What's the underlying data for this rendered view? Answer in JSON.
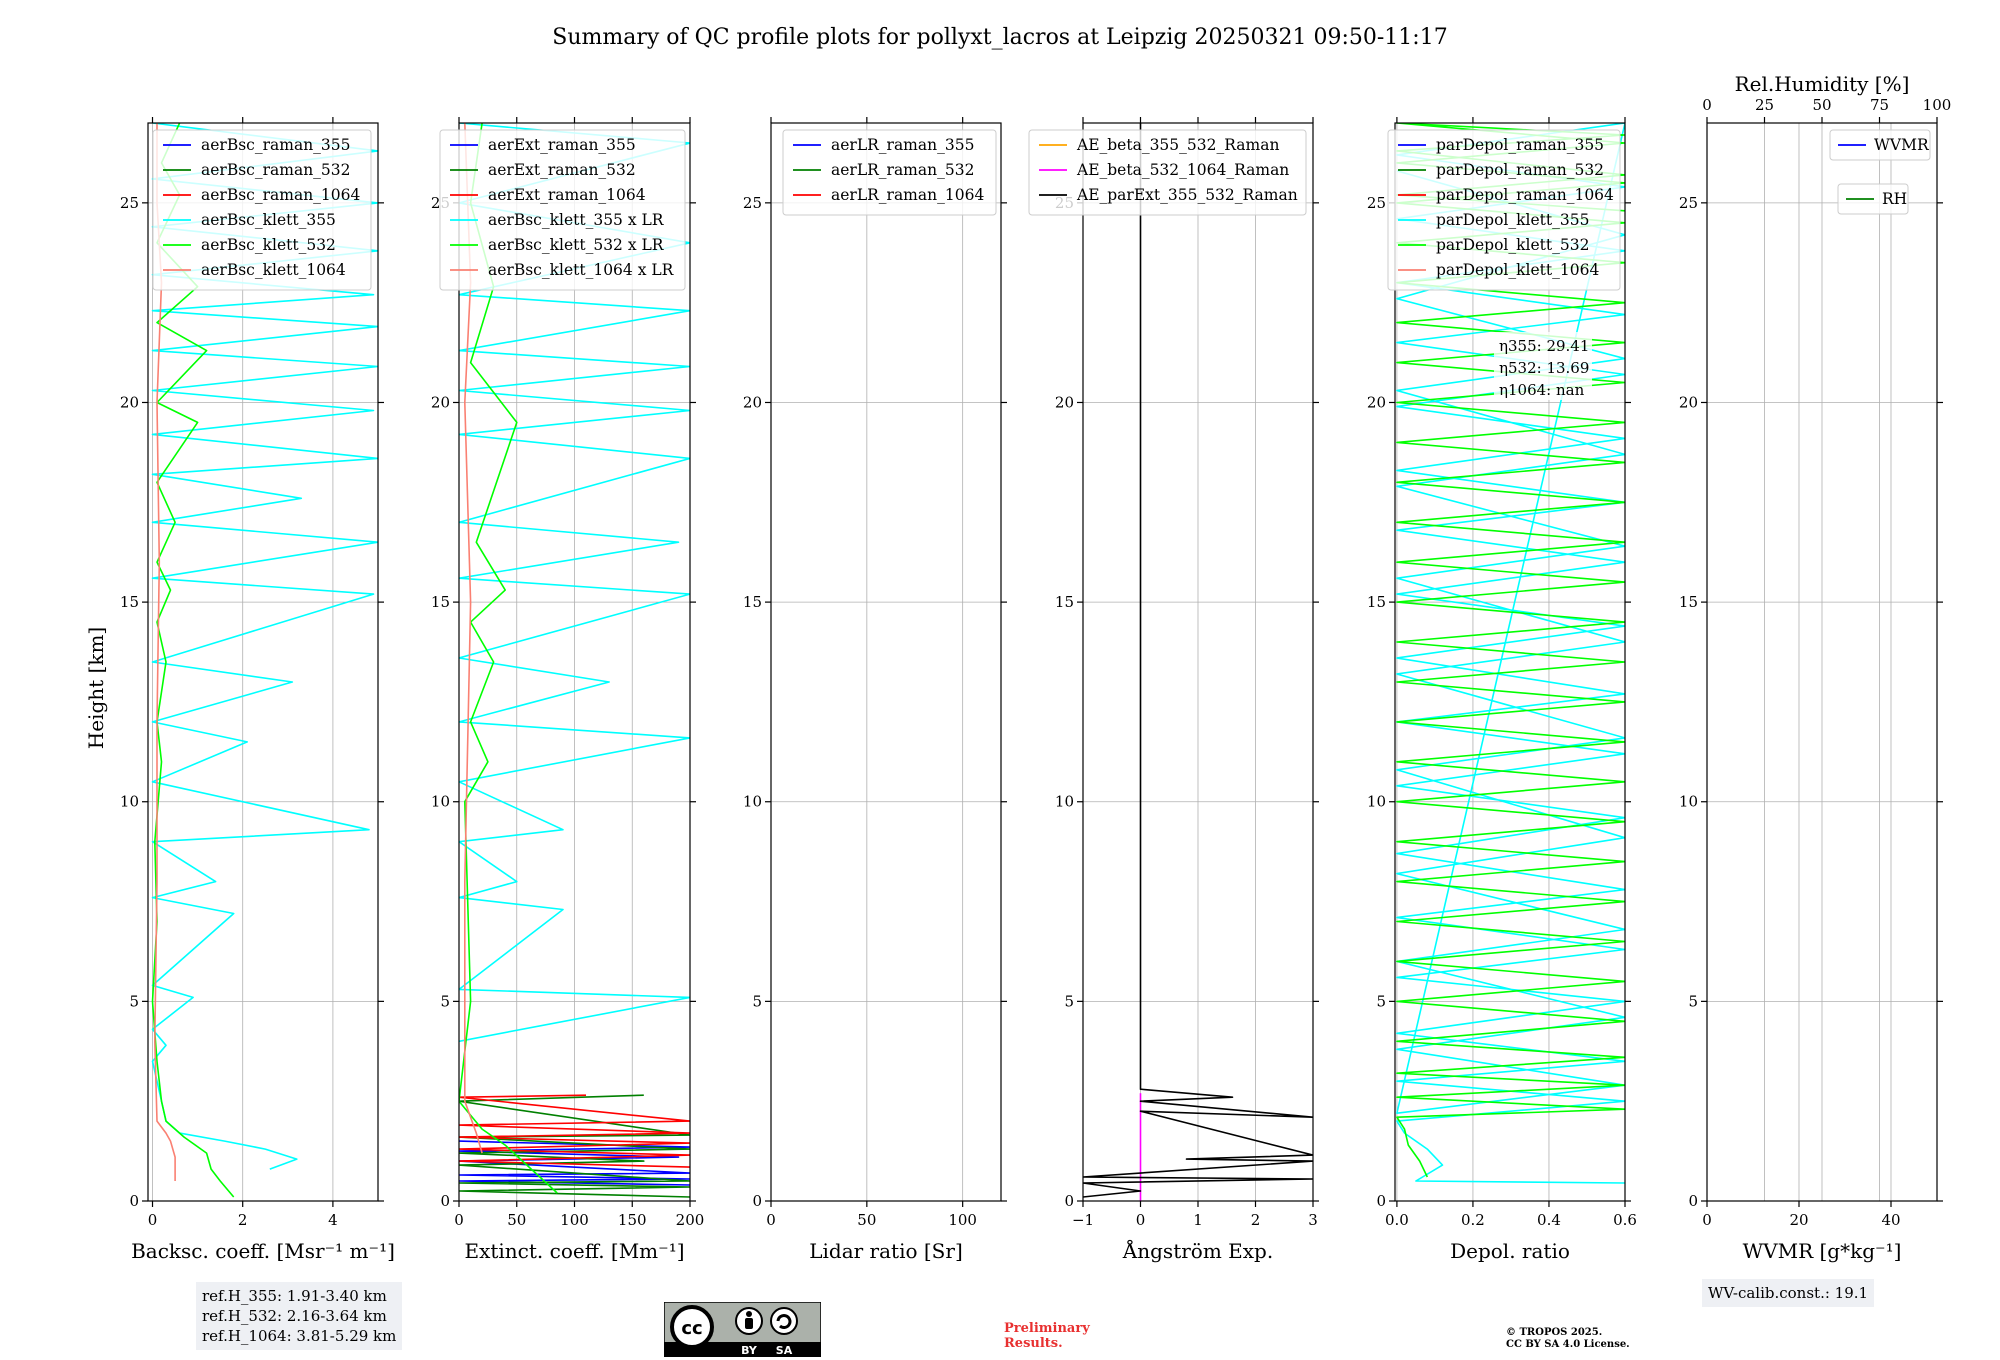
{
  "figure_title": "Summary of QC profile plots for pollyxt_lacros at Leipzig 20250321 09:50-11:17",
  "height_label": "Height [km]",
  "ref_heights": [
    "ref.H_355: 1.91-3.40 km",
    "ref.H_532: 2.16-3.64 km",
    "ref.H_1064: 3.81-5.29 km"
  ],
  "wv_calib": "WV-calib.const.: 19.1",
  "preliminary": [
    "Preliminary",
    "Results."
  ],
  "copyright": [
    "© TROPOS 2025.",
    "CC BY SA 4.0 License."
  ],
  "license_badge": {
    "cc": "cc",
    "by": "BY",
    "sa": "SA"
  },
  "colors": {
    "blue": "#0000ff",
    "green": "#008000",
    "red": "#ff0000",
    "cyan": "#00ffff",
    "lime": "#00ff00",
    "salmon": "#fa8072",
    "orange": "#ffa500",
    "magenta": "#ff00ff",
    "black": "#000000"
  },
  "chart_data": [
    {
      "type": "line",
      "id": "backscatter",
      "xlabel": "Backsc. coeff. [Msr⁻¹ m⁻¹]",
      "ylabel": "Height [km]",
      "xlim": [
        -0.1,
        5.0
      ],
      "ylim": [
        0,
        27
      ],
      "xticks": [
        0,
        2,
        4
      ],
      "yticks": [
        0,
        5,
        10,
        15,
        20,
        25
      ],
      "grid": true,
      "legend_placement": "upper right",
      "series": [
        {
          "name": "aerBsc_raman_355",
          "color": "blue",
          "values": []
        },
        {
          "name": "aerBsc_raman_532",
          "color": "green",
          "values": []
        },
        {
          "name": "aerBsc_raman_1064",
          "color": "red",
          "values": []
        },
        {
          "name": "aerBsc_klett_355",
          "color": "cyan",
          "x": [
            2.6,
            3.2,
            2.5,
            1.6,
            0.6,
            0.3,
            0.2,
            0.1,
            0.0,
            0.3,
            0.0,
            0.9,
            0.0,
            1.8,
            0.0,
            1.4,
            0.0,
            4.8,
            0.0,
            2.1,
            0.0,
            3.1,
            0.0,
            4.9,
            0.0,
            5.0,
            0.0,
            3.3,
            0.0,
            5.0,
            0.0,
            4.9,
            0.0,
            5.0,
            0.0,
            5.0,
            0.0,
            4.9,
            0.0,
            5.0,
            0.0,
            5.0,
            0.0,
            5.0,
            0.0
          ],
          "y": [
            0.8,
            1.05,
            1.3,
            1.5,
            1.7,
            2.0,
            2.5,
            3.0,
            3.5,
            3.9,
            4.3,
            5.1,
            5.4,
            7.2,
            7.6,
            8.0,
            9.0,
            9.3,
            10.5,
            11.5,
            12.0,
            13.0,
            13.5,
            15.2,
            15.6,
            16.5,
            17.0,
            17.6,
            18.2,
            18.6,
            19.2,
            19.8,
            20.3,
            20.9,
            21.3,
            21.9,
            22.3,
            22.7,
            23.2,
            23.8,
            24.4,
            25.0,
            25.6,
            26.3,
            27.0
          ]
        },
        {
          "name": "aerBsc_klett_532",
          "color": "lime",
          "x": [
            1.8,
            1.5,
            1.3,
            1.2,
            0.7,
            0.3,
            0.2,
            0.1,
            0.0,
            0.1,
            0.05,
            0.2,
            0.1,
            0.3,
            0.1,
            0.4,
            0.1,
            0.5,
            0.1,
            1.0,
            0.1,
            1.2,
            0.1,
            1.0,
            0.1,
            0.6,
            0.2,
            0.6
          ],
          "y": [
            0.1,
            0.5,
            0.8,
            1.2,
            1.6,
            2.0,
            2.5,
            3.5,
            5.0,
            7.0,
            9.0,
            11.0,
            12.0,
            13.5,
            14.5,
            15.3,
            16.0,
            17.0,
            18.0,
            19.5,
            20.0,
            21.3,
            22.0,
            22.9,
            24.0,
            25.2,
            26.0,
            27.0
          ]
        },
        {
          "name": "aerBsc_klett_1064",
          "color": "salmon",
          "x": [
            0.5,
            0.5,
            0.4,
            0.3,
            0.1,
            0.05,
            0.1,
            0.1,
            0.15,
            0.1,
            0.2,
            0.1,
            0.1
          ],
          "y": [
            0.5,
            1.1,
            1.5,
            1.7,
            2.0,
            4.0,
            8.0,
            12.0,
            16.0,
            20.0,
            23.0,
            25.0,
            27.0
          ]
        }
      ]
    },
    {
      "type": "line",
      "id": "extinction",
      "xlabel": "Extinct. coeff. [Mm⁻¹]",
      "ylabel": "Height [km]",
      "xlim": [
        0,
        200
      ],
      "ylim": [
        0,
        27
      ],
      "xticks": [
        0,
        50,
        100,
        150,
        200
      ],
      "yticks": [
        0,
        5,
        10,
        15,
        20,
        25
      ],
      "grid": true,
      "legend_placement": "upper right",
      "series": [
        {
          "name": "aerExt_raman_355",
          "color": "blue",
          "x": [
            200,
            0,
            200,
            0,
            200,
            0,
            190,
            0,
            200,
            0
          ],
          "y": [
            0.4,
            0.5,
            0.55,
            0.65,
            0.7,
            1.0,
            1.1,
            1.25,
            1.35,
            1.5
          ]
        },
        {
          "name": "aerExt_raman_532",
          "color": "green",
          "x": [
            200,
            0,
            200,
            0,
            200,
            0,
            160,
            0,
            200,
            0,
            200,
            0,
            160
          ],
          "y": [
            0.1,
            0.25,
            0.35,
            0.45,
            0.5,
            0.9,
            1.0,
            1.2,
            1.3,
            1.6,
            1.65,
            2.5,
            2.65
          ]
        },
        {
          "name": "aerExt_raman_1064",
          "color": "red",
          "x": [
            200,
            0,
            200,
            0,
            200,
            0,
            200,
            0,
            200,
            0,
            110
          ],
          "y": [
            0.85,
            1.0,
            1.15,
            1.3,
            1.45,
            1.6,
            1.7,
            1.9,
            2.0,
            2.6,
            2.65
          ]
        },
        {
          "name": "aerBsc_klett_355 x LR",
          "color": "cyan",
          "x": [
            0,
            200,
            0,
            90,
            0,
            50,
            0,
            90,
            0,
            200,
            0,
            130,
            0,
            200,
            0,
            190,
            0,
            200,
            0,
            200,
            0,
            200,
            0,
            200,
            0,
            200,
            0,
            200,
            0
          ],
          "y": [
            4.0,
            5.1,
            5.3,
            7.3,
            7.6,
            8.0,
            9.0,
            9.3,
            10.5,
            11.6,
            12.0,
            13.0,
            13.6,
            15.2,
            15.6,
            16.5,
            17.0,
            18.6,
            19.2,
            19.8,
            20.3,
            20.9,
            21.3,
            22.3,
            22.7,
            24.0,
            25.0,
            26.5,
            27.0
          ]
        },
        {
          "name": "aerBsc_klett_532 x LR",
          "color": "lime",
          "x": [
            85,
            70,
            55,
            40,
            20,
            0,
            10,
            5,
            25,
            10,
            30,
            10,
            40,
            15,
            50,
            10,
            30,
            10,
            20
          ],
          "y": [
            0.2,
            0.6,
            1.0,
            1.4,
            1.8,
            2.5,
            5.0,
            10.0,
            11.0,
            12.0,
            13.5,
            14.5,
            15.3,
            16.5,
            19.5,
            21.0,
            22.9,
            25.0,
            27.0
          ]
        },
        {
          "name": "aerBsc_klett_1064 x LR",
          "color": "salmon",
          "x": [
            20,
            15,
            5,
            5,
            10,
            5,
            10,
            5
          ],
          "y": [
            1.2,
            1.7,
            2.5,
            8.0,
            15.0,
            20.0,
            23.0,
            27.0
          ]
        }
      ]
    },
    {
      "type": "line",
      "id": "lidar-ratio",
      "xlabel": "Lidar ratio [Sr]",
      "ylabel": "Height [km]",
      "xlim": [
        0,
        120
      ],
      "ylim": [
        0,
        27
      ],
      "xticks": [
        0,
        50,
        100
      ],
      "yticks": [
        0,
        5,
        10,
        15,
        20,
        25
      ],
      "grid": true,
      "legend_placement": "upper right",
      "series": [
        {
          "name": "aerLR_raman_355",
          "color": "blue",
          "values": []
        },
        {
          "name": "aerLR_raman_532",
          "color": "green",
          "values": []
        },
        {
          "name": "aerLR_raman_1064",
          "color": "red",
          "values": []
        }
      ]
    },
    {
      "type": "line",
      "id": "angstrom",
      "xlabel": "Ångström Exp.",
      "ylabel": "Height [km]",
      "xlim": [
        -1,
        3
      ],
      "ylim": [
        0,
        27
      ],
      "xticks": [
        -1,
        0,
        1,
        2,
        3
      ],
      "xticklabels": [
        "−1",
        "0",
        "1",
        "2",
        "3"
      ],
      "yticks": [
        0,
        5,
        10,
        15,
        20,
        25
      ],
      "grid": true,
      "legend_placement": "upper left",
      "series": [
        {
          "name": "AE_beta_355_532_Raman",
          "color": "orange",
          "values": []
        },
        {
          "name": "AE_beta_532_1064_Raman",
          "color": "magenta",
          "x": [
            0,
            0
          ],
          "y": [
            0.0,
            2.7
          ]
        },
        {
          "name": "AE_parExt_355_532_Raman",
          "color": "black",
          "x": [
            -1.0,
            0.0,
            -1.0,
            3.0,
            -1.0,
            3.0,
            0.8,
            3.0,
            0.0,
            3.0,
            0.0,
            1.6,
            0.0,
            0.0
          ],
          "y": [
            0.1,
            0.25,
            0.45,
            0.55,
            0.6,
            1.0,
            1.05,
            1.15,
            2.25,
            2.1,
            2.5,
            2.6,
            2.8,
            27.0
          ]
        }
      ]
    },
    {
      "type": "line",
      "id": "depolarization",
      "xlabel": "Depol. ratio",
      "ylabel": "Height [km]",
      "xlim": [
        -0.005,
        0.6
      ],
      "ylim": [
        0,
        27
      ],
      "xticks": [
        0.0,
        0.2,
        0.4,
        0.6
      ],
      "xticklabels": [
        "0.0",
        "0.2",
        "0.4",
        "0.6"
      ],
      "yticks": [
        0,
        5,
        10,
        15,
        20,
        25
      ],
      "grid": true,
      "legend_placement": "upper right",
      "annotations": [
        "η355: 29.41",
        "η532: 13.69",
        "η1064: nan"
      ],
      "series": [
        {
          "name": "parDepol_raman_355",
          "color": "blue",
          "values": []
        },
        {
          "name": "parDepol_raman_532",
          "color": "green",
          "values": []
        },
        {
          "name": "parDepol_raman_1064",
          "color": "red",
          "values": []
        },
        {
          "name": "parDepol_klett_355",
          "color": "cyan",
          "x": [
            0.6,
            0.05,
            0.12,
            0.08,
            0.02,
            0.0,
            0.6,
            0.0,
            0.6,
            0.0,
            0.6,
            0.0,
            0.6,
            0.0,
            0.6,
            0.0,
            0.6,
            0.0,
            0.6,
            0.0,
            0.6,
            0.0,
            0.6,
            0.0,
            0.6,
            0.0,
            0.6,
            0.0,
            0.6,
            0.0,
            0.6,
            0.0,
            0.6,
            0.0,
            0.6,
            0.0,
            0.6,
            0.0,
            0.6,
            0.0,
            0.6,
            0.0,
            0.6,
            0.0,
            0.6,
            0.0,
            0.6,
            0.0,
            0.6,
            0.0,
            0.6,
            0.0,
            0.6,
            0.0,
            0.6,
            0.0,
            0.6,
            0.0,
            0.6,
            0.0
          ],
          "y": [
            0.45,
            0.5,
            0.9,
            1.3,
            1.7,
            2.0,
            2.5,
            3.0,
            3.5,
            4.2,
            5.0,
            5.6,
            6.3,
            7.1,
            7.8,
            8.7,
            9.6,
            10.4,
            11.2,
            12.0,
            12.7,
            13.6,
            14.4,
            15.2,
            16.0,
            16.8,
            17.5,
            18.3,
            19.1,
            19.9,
            20.7,
            21.5,
            22.2,
            23.0,
            23.8,
            24.6,
            25.4,
            26.2,
            27.0,
            2.2,
            2.9,
            3.8,
            4.6,
            6.0,
            6.8,
            8.2,
            9.1,
            10.8,
            11.6,
            13.2,
            14.0,
            15.6,
            16.4,
            17.9,
            18.7,
            20.3,
            21.1,
            22.6,
            24.2,
            25.8
          ]
        },
        {
          "name": "parDepol_klett_532",
          "color": "lime",
          "x": [
            0.08,
            0.06,
            0.03,
            0.02,
            0.0,
            0.6,
            0.0,
            0.6,
            0.0,
            0.6,
            0.0,
            0.6,
            0.0,
            0.6,
            0.0,
            0.6,
            0.0,
            0.6,
            0.0,
            0.6,
            0.0,
            0.6,
            0.0,
            0.6,
            0.0,
            0.6,
            0.0,
            0.6,
            0.0,
            0.6,
            0.0,
            0.6,
            0.0,
            0.6,
            0.0,
            0.6,
            0.0,
            0.6,
            0.0,
            0.6,
            0.0,
            0.6,
            0.0,
            0.6,
            0.0,
            0.6,
            0.0,
            0.6,
            0.0,
            0.6,
            0.0,
            0.6,
            0.0,
            0.6,
            0.0,
            0.6,
            0.0,
            0.6,
            0.0,
            0.6,
            0.0,
            0.6
          ],
          "y": [
            0.6,
            1.0,
            1.4,
            1.8,
            2.1,
            2.3,
            2.6,
            2.9,
            3.2,
            3.6,
            4.0,
            4.5,
            5.0,
            5.5,
            6.0,
            6.5,
            7.0,
            7.5,
            8.0,
            8.5,
            9.0,
            9.5,
            10.0,
            10.5,
            11.0,
            11.5,
            12.0,
            12.5,
            13.0,
            13.5,
            14.0,
            14.5,
            15.0,
            15.5,
            16.0,
            16.5,
            17.0,
            17.5,
            18.0,
            18.5,
            19.0,
            19.5,
            20.0,
            20.5,
            21.0,
            21.5,
            22.0,
            22.5,
            23.0,
            23.5,
            24.0,
            24.5,
            25.0,
            25.5,
            26.0,
            26.5,
            27.0,
            26.7,
            26.3,
            25.7,
            25.2,
            24.8
          ]
        },
        {
          "name": "parDepol_klett_1064",
          "color": "salmon",
          "values": []
        }
      ]
    },
    {
      "type": "line",
      "id": "water-vapor",
      "xlabel": "WVMR [g*kg⁻¹]",
      "x2label": "Rel.Humidity [%]",
      "ylabel": "Height [km]",
      "xlim": [
        0,
        50
      ],
      "x2lim": [
        0,
        100
      ],
      "ylim": [
        0,
        27
      ],
      "xticks": [
        0,
        20,
        40
      ],
      "x2ticks": [
        0,
        25,
        50,
        75,
        100
      ],
      "yticks": [
        0,
        5,
        10,
        15,
        20,
        25
      ],
      "grid": true,
      "legend_placement": "upper right",
      "series": [
        {
          "name": "WVMR",
          "color": "blue",
          "values": []
        },
        {
          "name": "RH",
          "color": "green",
          "values": []
        }
      ]
    }
  ]
}
